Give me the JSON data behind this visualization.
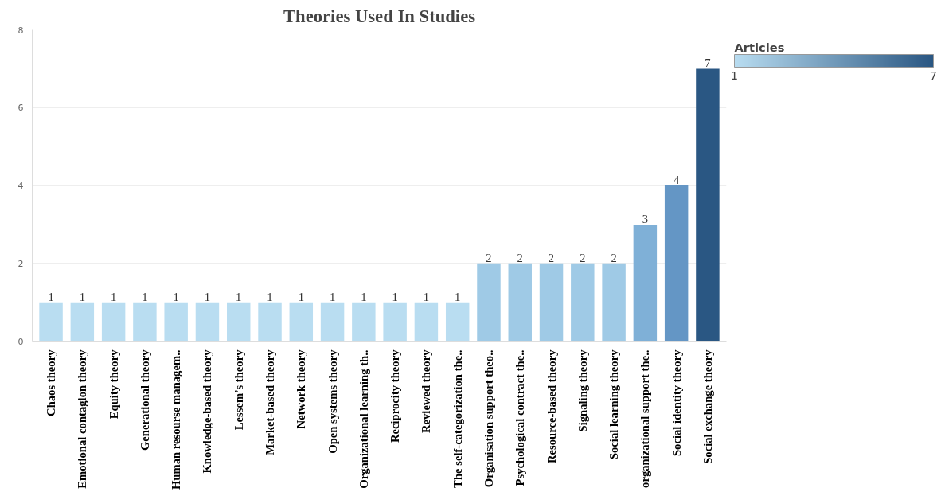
{
  "chart_data": {
    "type": "bar",
    "title": "Theories Used In Studies",
    "categories": [
      "Chaos theory",
      "Emotional contagion theory",
      "Equity theory",
      "Generational theory",
      "Human resourse managem..",
      "Knowledge-based theory",
      "Lessem’s theory",
      "Market-based theory",
      "Network theory",
      "Open systems theory",
      "Organizational learning th..",
      "Reciprocity theory",
      "Reviewed theory",
      "The self-categorization the..",
      "Organisation support theo..",
      "Psychological contract the..",
      "Resource-based theory",
      "Signaling theory",
      "Social learning theory",
      "organizational support the..",
      "Social identity theory",
      "Social exchange theory"
    ],
    "values": [
      1,
      1,
      1,
      1,
      1,
      1,
      1,
      1,
      1,
      1,
      1,
      1,
      1,
      1,
      2,
      2,
      2,
      2,
      2,
      3,
      4,
      7
    ],
    "colors": [
      "#b9ddf1",
      "#b9ddf1",
      "#b9ddf1",
      "#b9ddf1",
      "#b9ddf1",
      "#b9ddf1",
      "#b9ddf1",
      "#b9ddf1",
      "#b9ddf1",
      "#b9ddf1",
      "#b9ddf1",
      "#b9ddf1",
      "#b9ddf1",
      "#b9ddf1",
      "#9fcae6",
      "#9fcae6",
      "#9fcae6",
      "#9fcae6",
      "#9fcae6",
      "#7fb0d7",
      "#6496c5",
      "#2a5783"
    ],
    "ylim": [
      0,
      8
    ],
    "yticks": [
      0,
      2,
      4,
      6,
      8
    ],
    "grid": "y",
    "data_labels": true,
    "clabel": "Articles",
    "clim": [
      1,
      7
    ],
    "cticks": [
      1,
      7
    ]
  }
}
